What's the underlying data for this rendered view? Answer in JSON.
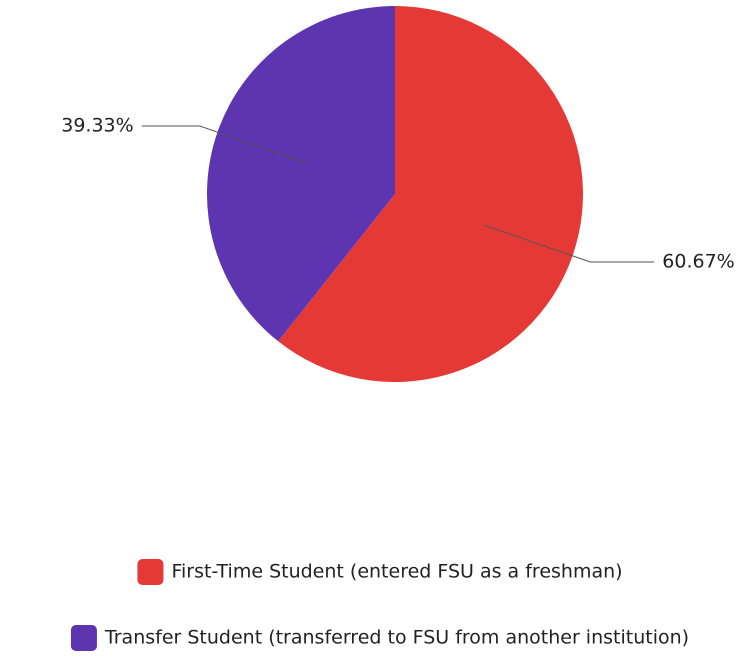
{
  "chart_data": {
    "type": "pie",
    "categories": [
      "First-Time Student (entered FSU as a freshman)",
      "Transfer Student (transferred to FSU from another institution)"
    ],
    "values": [
      60.67,
      39.33
    ],
    "value_labels": [
      "60.67%",
      "39.33%"
    ],
    "colors": [
      "#e53935",
      "#5e35b1"
    ],
    "legend": "bottom"
  }
}
